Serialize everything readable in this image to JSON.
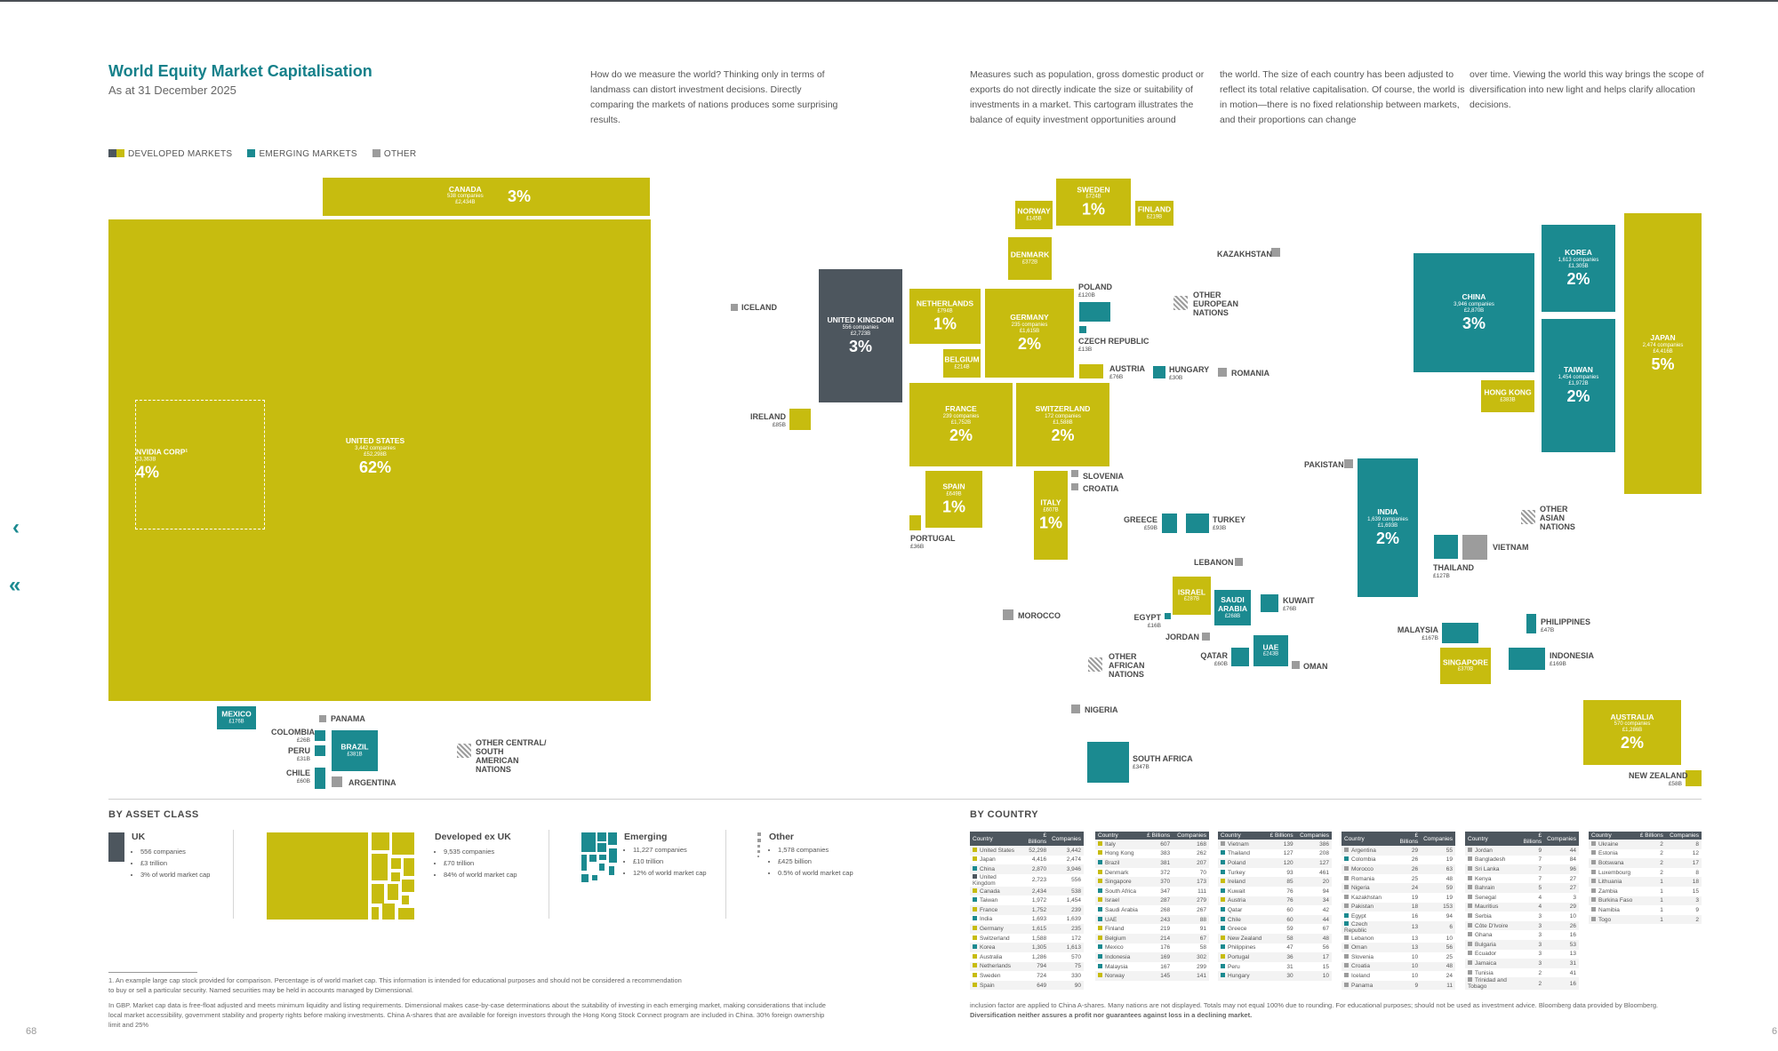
{
  "title": "World Equity Market Capitalisation",
  "subtitle": "As at 31 December 2025",
  "intro": [
    "How do we measure the world? Thinking only in terms of landmass can distort investment decisions. Directly comparing the markets of nations produces some surprising results.",
    "Measures such as population, gross domestic product or exports do not directly indicate the size or suitability of investments in a market. This cartogram illustrates the balance of equity investment opportunities around",
    "the world. The size of each country has been adjusted to reflect its total relative capitalisation. Of course, the world is in motion—there is no fixed relationship between markets, and their proportions can change",
    "over time. Viewing the world this way brings the scope of diversification into new light and helps clarify allocation decisions."
  ],
  "legend": {
    "developed": "DEVELOPED MARKETS",
    "emerging": "EMERGING MARKETS",
    "other": "OTHER"
  },
  "colors": {
    "developed": "#c7bc0f",
    "emerging": "#1b8a90",
    "uk": "#4d565e",
    "other": "#9c9c9c",
    "accent": "#15808a"
  },
  "boxes": {
    "canada": {
      "name": "CANADA",
      "sub": "538 companies",
      "sub2": "£2,434B",
      "pct": "3%"
    },
    "us": {
      "name": "UNITED STATES",
      "sub": "3,442 companies",
      "sub2": "£52,298B",
      "pct": "62%"
    },
    "nvidia": {
      "name": "NVIDIA CORP¹",
      "sub": "£3,363B",
      "pct": "4%"
    },
    "uk": {
      "name": "UNITED KINGDOM",
      "sub": "556 companies",
      "sub2": "£2,723B",
      "pct": "3%"
    },
    "sweden": {
      "name": "SWEDEN",
      "sub": "£724B",
      "pct": "1%"
    },
    "norway": {
      "name": "NORWAY",
      "sub": "£145B"
    },
    "finland": {
      "name": "FINLAND",
      "sub": "£219B"
    },
    "denmark": {
      "name": "DENMARK",
      "sub": "£372B"
    },
    "netherlands": {
      "name": "NETHERLANDS",
      "sub": "£794B",
      "pct": "1%"
    },
    "germany": {
      "name": "GERMANY",
      "sub": "235 companies",
      "sub2": "£1,615B",
      "pct": "2%"
    },
    "belgium": {
      "name": "BELGIUM",
      "sub": "£214B"
    },
    "france": {
      "name": "FRANCE",
      "sub": "239 companies",
      "sub2": "£1,752B",
      "pct": "2%"
    },
    "switzerland": {
      "name": "SWITZERLAND",
      "sub": "172 companies",
      "sub2": "£1,588B",
      "pct": "2%"
    },
    "spain": {
      "name": "SPAIN",
      "sub": "£649B",
      "pct": "1%"
    },
    "italy": {
      "name": "ITALY",
      "sub": "£607B",
      "pct": "1%"
    },
    "china": {
      "name": "CHINA",
      "sub": "3,946 companies",
      "sub2": "£2,870B",
      "pct": "3%"
    },
    "korea": {
      "name": "KOREA",
      "sub": "1,613 companies",
      "sub2": "£1,305B",
      "pct": "2%"
    },
    "taiwan": {
      "name": "TAIWAN",
      "sub": "1,454 companies",
      "sub2": "£1,972B",
      "pct": "2%"
    },
    "hongkong": {
      "name": "HONG KONG",
      "sub": "£383B"
    },
    "japan": {
      "name": "JAPAN",
      "sub": "2,474 companies",
      "sub2": "£4,416B",
      "pct": "5%"
    },
    "india": {
      "name": "INDIA",
      "sub": "1,639 companies",
      "sub2": "£1,693B",
      "pct": "2%"
    },
    "israel": {
      "name": "ISRAEL",
      "sub": "£287B"
    },
    "saudi": {
      "name": "SAUDI ARABIA",
      "sub": "£268B"
    },
    "uae": {
      "name": "UAE",
      "sub": "£243B"
    },
    "singapore": {
      "name": "SINGAPORE",
      "sub": "£370B"
    },
    "australia": {
      "name": "AUSTRALIA",
      "sub": "570 companies",
      "sub2": "£1,286B",
      "pct": "2%"
    },
    "brazil": {
      "name": "BRAZIL",
      "sub": "£381B"
    },
    "mexico": {
      "name": "MEXICO",
      "sub": "£176B"
    }
  },
  "labels": {
    "iceland": "ICELAND",
    "ireland": "IRELAND",
    "ireland_v": "£85B",
    "portugal": "PORTUGAL",
    "portugal_v": "£36B",
    "poland": "POLAND",
    "poland_v": "£120B",
    "czech": "CZECH REPUBLIC",
    "czech_v": "£13B",
    "austria": "AUSTRIA",
    "austria_v": "£76B",
    "hungary": "HUNGARY",
    "hungary_v": "£30B",
    "romania": "ROMANIA",
    "kazakhstan": "KAZAKHSTAN",
    "other_european": "OTHER EUROPEAN NATIONS",
    "slovenia": "SLOVENIA",
    "croatia": "CROATIA",
    "greece": "GREECE",
    "greece_v": "£59B",
    "turkey": "TURKEY",
    "turkey_v": "£93B",
    "lebanon": "LEBANON",
    "kuwait": "KUWAIT",
    "kuwait_v": "£76B",
    "egypt": "EGYPT",
    "egypt_v": "£16B",
    "jordan": "JORDAN",
    "qatar": "QATAR",
    "qatar_v": "£60B",
    "oman": "OMAN",
    "morocco": "MOROCCO",
    "other_african": "OTHER AFRICAN NATIONS",
    "nigeria": "NIGERIA",
    "southafrica": "SOUTH AFRICA",
    "southafrica_v": "£347B",
    "pakistan": "PAKISTAN",
    "other_asian": "OTHER ASIAN NATIONS",
    "thailand": "THAILAND",
    "thailand_v": "£127B",
    "vietnam": "VIETNAM",
    "malaysia": "MALAYSIA",
    "malaysia_v": "£167B",
    "philippines": "PHILIPPINES",
    "philippines_v": "£47B",
    "indonesia": "INDONESIA",
    "indonesia_v": "£169B",
    "newzealand": "NEW ZEALAND",
    "newzealand_v": "£58B",
    "panama": "PANAMA",
    "colombia": "COLOMBIA",
    "colombia_v": "£26B",
    "peru": "PERU",
    "peru_v": "£31B",
    "chile": "CHILE",
    "chile_v": "£60B",
    "argentina": "ARGENTINA",
    "other_central": "OTHER CENTRAL/ SOUTH AMERICAN NATIONS"
  },
  "asset_class": {
    "heading": "BY ASSET CLASS",
    "uk": {
      "title": "UK",
      "items": [
        "556 companies",
        "£3 trillion",
        "3% of world market cap"
      ]
    },
    "devexuk": {
      "title": "Developed ex UK",
      "items": [
        "9,535 companies",
        "£70 trillion",
        "84% of world market cap"
      ]
    },
    "emerging": {
      "title": "Emerging",
      "items": [
        "11,227 companies",
        "£10 trillion",
        "12% of world market cap"
      ]
    },
    "other": {
      "title": "Other",
      "items": [
        "1,578 companies",
        "£425 billion",
        "0.5% of world market cap"
      ]
    }
  },
  "by_country": {
    "heading": "BY COUNTRY",
    "headers": [
      "Country",
      "£ Billions",
      "Companies"
    ],
    "columns": [
      [
        [
          "United States",
          "52,298",
          "3,442",
          "d"
        ],
        [
          "Japan",
          "4,416",
          "2,474",
          "d"
        ],
        [
          "China",
          "2,870",
          "3,946",
          "e"
        ],
        [
          "United Kingdom",
          "2,723",
          "556",
          "u"
        ],
        [
          "Canada",
          "2,434",
          "538",
          "d"
        ],
        [
          "Taiwan",
          "1,972",
          "1,454",
          "e"
        ],
        [
          "France",
          "1,752",
          "239",
          "d"
        ],
        [
          "India",
          "1,693",
          "1,639",
          "e"
        ],
        [
          "Germany",
          "1,615",
          "235",
          "d"
        ],
        [
          "Switzerland",
          "1,588",
          "172",
          "d"
        ],
        [
          "Korea",
          "1,305",
          "1,613",
          "e"
        ],
        [
          "Australia",
          "1,286",
          "570",
          "d"
        ],
        [
          "Netherlands",
          "794",
          "75",
          "d"
        ],
        [
          "Sweden",
          "724",
          "330",
          "d"
        ],
        [
          "Spain",
          "649",
          "90",
          "d"
        ]
      ],
      [
        [
          "Italy",
          "607",
          "168",
          "d"
        ],
        [
          "Hong Kong",
          "383",
          "262",
          "d"
        ],
        [
          "Brazil",
          "381",
          "207",
          "e"
        ],
        [
          "Denmark",
          "372",
          "70",
          "d"
        ],
        [
          "Singapore",
          "370",
          "173",
          "d"
        ],
        [
          "South Africa",
          "347",
          "111",
          "e"
        ],
        [
          "Israel",
          "287",
          "279",
          "d"
        ],
        [
          "Saudi Arabia",
          "268",
          "267",
          "e"
        ],
        [
          "UAE",
          "243",
          "88",
          "e"
        ],
        [
          "Finland",
          "219",
          "91",
          "d"
        ],
        [
          "Belgium",
          "214",
          "67",
          "d"
        ],
        [
          "Mexico",
          "176",
          "58",
          "e"
        ],
        [
          "Indonesia",
          "169",
          "302",
          "e"
        ],
        [
          "Malaysia",
          "167",
          "299",
          "e"
        ],
        [
          "Norway",
          "145",
          "141",
          "d"
        ]
      ],
      [
        [
          "Vietnam",
          "139",
          "386",
          "o"
        ],
        [
          "Thailand",
          "127",
          "208",
          "e"
        ],
        [
          "Poland",
          "120",
          "127",
          "e"
        ],
        [
          "Turkey",
          "93",
          "461",
          "e"
        ],
        [
          "Ireland",
          "85",
          "20",
          "d"
        ],
        [
          "Kuwait",
          "76",
          "94",
          "e"
        ],
        [
          "Austria",
          "76",
          "34",
          "d"
        ],
        [
          "Qatar",
          "60",
          "42",
          "e"
        ],
        [
          "Chile",
          "60",
          "44",
          "e"
        ],
        [
          "Greece",
          "59",
          "67",
          "e"
        ],
        [
          "New Zealand",
          "58",
          "48",
          "d"
        ],
        [
          "Philippines",
          "47",
          "56",
          "e"
        ],
        [
          "Portugal",
          "36",
          "17",
          "d"
        ],
        [
          "Peru",
          "31",
          "15",
          "e"
        ],
        [
          "Hungary",
          "30",
          "10",
          "e"
        ]
      ],
      [
        [
          "Argentina",
          "29",
          "55",
          "o"
        ],
        [
          "Colombia",
          "26",
          "19",
          "e"
        ],
        [
          "Morocco",
          "26",
          "63",
          "o"
        ],
        [
          "Romania",
          "25",
          "48",
          "o"
        ],
        [
          "Nigeria",
          "24",
          "59",
          "o"
        ],
        [
          "Kazakhstan",
          "19",
          "19",
          "o"
        ],
        [
          "Pakistan",
          "18",
          "153",
          "o"
        ],
        [
          "Egypt",
          "16",
          "94",
          "e"
        ],
        [
          "Czech Republic",
          "13",
          "6",
          "e"
        ],
        [
          "Lebanon",
          "13",
          "10",
          "o"
        ],
        [
          "Oman",
          "13",
          "56",
          "o"
        ],
        [
          "Slovenia",
          "10",
          "25",
          "o"
        ],
        [
          "Croatia",
          "10",
          "48",
          "o"
        ],
        [
          "Iceland",
          "10",
          "24",
          "o"
        ],
        [
          "Panama",
          "9",
          "11",
          "o"
        ]
      ],
      [
        [
          "Jordan",
          "9",
          "44",
          "o"
        ],
        [
          "Bangladesh",
          "7",
          "84",
          "o"
        ],
        [
          "Sri Lanka",
          "7",
          "96",
          "o"
        ],
        [
          "Kenya",
          "7",
          "27",
          "o"
        ],
        [
          "Bahrain",
          "5",
          "27",
          "o"
        ],
        [
          "Senegal",
          "4",
          "3",
          "o"
        ],
        [
          "Mauritius",
          "4",
          "29",
          "o"
        ],
        [
          "Serbia",
          "3",
          "10",
          "o"
        ],
        [
          "Côte D'Ivoire",
          "3",
          "26",
          "o"
        ],
        [
          "Ghana",
          "3",
          "16",
          "o"
        ],
        [
          "Bulgaria",
          "3",
          "53",
          "o"
        ],
        [
          "Ecuador",
          "3",
          "13",
          "o"
        ],
        [
          "Jamaica",
          "3",
          "31",
          "o"
        ],
        [
          "Tunisia",
          "2",
          "41",
          "o"
        ],
        [
          "Trinidad and Tobago",
          "2",
          "16",
          "o"
        ]
      ],
      [
        [
          "Ukraine",
          "2",
          "8",
          "o"
        ],
        [
          "Estonia",
          "2",
          "12",
          "o"
        ],
        [
          "Botswana",
          "2",
          "17",
          "o"
        ],
        [
          "Luxembourg",
          "2",
          "8",
          "o"
        ],
        [
          "Lithuania",
          "1",
          "18",
          "o"
        ],
        [
          "Zambia",
          "1",
          "15",
          "o"
        ],
        [
          "Burkina Faso",
          "1",
          "3",
          "o"
        ],
        [
          "Namibia",
          "1",
          "9",
          "o"
        ],
        [
          "Togo",
          "1",
          "2",
          "o"
        ]
      ]
    ]
  },
  "footnotes": {
    "note1": "1.  An example large cap stock provided for comparison. Percentage is of world market cap. This information is intended for educational purposes and should not be considered a recommendation to buy or sell a particular security. Named securities may be held in accounts managed by Dimensional.",
    "left": "In GBP. Market cap data is free-float adjusted and meets minimum liquidity and listing requirements. Dimensional makes case-by-case determinations about the suitability of investing in each emerging market, making considerations that include local market accessibility, government stability and property rights before making investments. China A-shares that are available for foreign investors through the Hong Kong Stock Connect program are included in China. 30% foreign ownership limit and 25%",
    "right": "inclusion factor are applied to China A-shares. Many nations are not displayed. Totals may not equal 100% due to rounding. For educational purposes; should not be used as investment advice. Bloomberg data provided by Bloomberg.",
    "right_bold": "Diversification neither assures a profit nor guarantees against loss in a declining market."
  },
  "page_left": "68",
  "page_right": "6"
}
